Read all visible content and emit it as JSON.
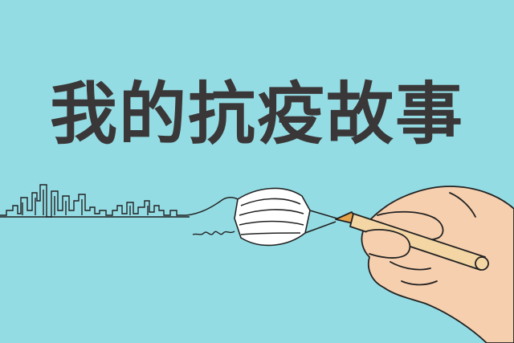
{
  "poster": {
    "title": "我的抗疫故事",
    "background_color": "#94dce4",
    "title_color": "#3a3738",
    "illustration": {
      "skyline": "city-skyline-line",
      "mask": "face-mask",
      "hand": "hand-holding-pen",
      "pen": "fountain-pen"
    }
  }
}
